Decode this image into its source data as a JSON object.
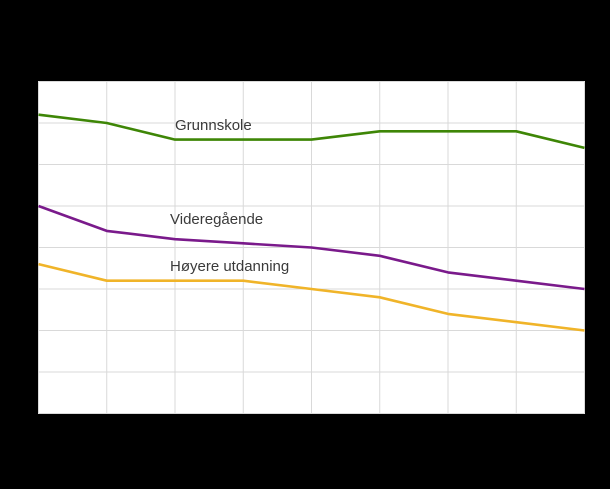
{
  "window": {
    "background_color": "#000000"
  },
  "chart_data": {
    "type": "line",
    "x": [
      1,
      2,
      3,
      4,
      5,
      6,
      7,
      8,
      9
    ],
    "x_tick_labels_visible": false,
    "y_tick_labels_visible": false,
    "title": "",
    "xlabel": "",
    "ylabel": "",
    "ylim": [
      0,
      80
    ],
    "y_gridline_step": 10,
    "grid": true,
    "gridline_color": "#d9d9d9",
    "plot_background": "#ffffff",
    "legend_position": "inline-labels-on-plot",
    "series": [
      {
        "name": "Grunnskole",
        "color": "#3e8606",
        "values": [
          72,
          70,
          66,
          66,
          66,
          68,
          68,
          68,
          64
        ]
      },
      {
        "name": "Videregående",
        "color": "#7a1a8b",
        "values": [
          50,
          44,
          42,
          41,
          40,
          38,
          34,
          32,
          30
        ]
      },
      {
        "name": "Høyere utdanning",
        "color": "#f0b429",
        "values": [
          36,
          32,
          32,
          32,
          30,
          28,
          24,
          22,
          20
        ]
      }
    ]
  }
}
